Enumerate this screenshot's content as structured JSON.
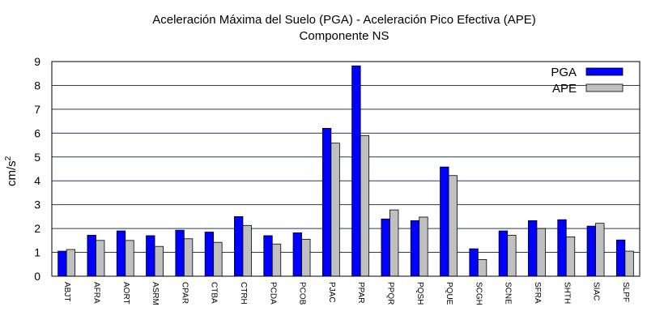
{
  "chart_data": {
    "type": "bar",
    "title": "Aceleración Máxima del Suelo (PGA) -  Aceleración Pico Efectiva (APE)",
    "subtitle": "Componente NS",
    "xlabel": "",
    "ylabel": "cm/s",
    "ylabel_superscript": "2",
    "ylim": [
      0,
      9
    ],
    "yticks": [
      "0",
      "1",
      "2",
      "3",
      "4",
      "5",
      "6",
      "7",
      "8",
      "9"
    ],
    "grid": true,
    "legend_position": "top-right",
    "categories": [
      "ABJT",
      "AFRA",
      "AORT",
      "ASRM",
      "CPAR",
      "CTBA",
      "CTRH",
      "PCDA",
      "PCOB",
      "PJAC",
      "PPAR",
      "PPQR",
      "PQSH",
      "PQUE",
      "SCGH",
      "SCNE",
      "SFRA",
      "SHTH",
      "SIAC",
      "SLPF"
    ],
    "series": [
      {
        "name": "PGA",
        "color": "#0000ff",
        "values": [
          1.05,
          1.72,
          1.9,
          1.7,
          1.93,
          1.85,
          2.5,
          1.7,
          1.82,
          6.2,
          8.82,
          2.4,
          2.33,
          4.58,
          1.15,
          1.9,
          2.33,
          2.37,
          2.1,
          1.52
        ]
      },
      {
        "name": "APE",
        "color": "#c0c0c0",
        "values": [
          1.12,
          1.5,
          1.5,
          1.25,
          1.57,
          1.42,
          2.13,
          1.35,
          1.55,
          5.58,
          5.9,
          2.78,
          2.48,
          4.22,
          0.7,
          1.72,
          2.0,
          1.65,
          2.22,
          1.05
        ]
      }
    ]
  }
}
